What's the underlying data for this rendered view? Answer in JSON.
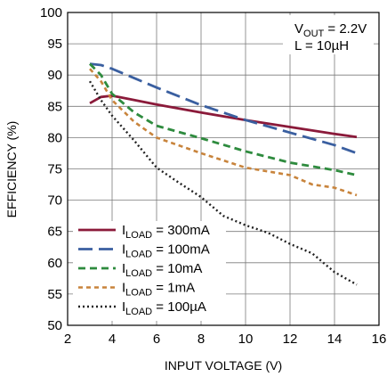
{
  "chart_data": {
    "type": "line",
    "xlabel": "INPUT VOLTAGE (V)",
    "ylabel": "EFFICIENCY (%)",
    "xlim": [
      2,
      16
    ],
    "ylim": [
      50,
      100
    ],
    "xticks": [
      2,
      4,
      6,
      8,
      10,
      12,
      14,
      16
    ],
    "yticks": [
      50,
      55,
      60,
      65,
      70,
      75,
      80,
      85,
      90,
      95,
      100
    ],
    "grid": true,
    "annotation": {
      "line1_main": "V",
      "line1_sub": "OUT",
      "line1_rest": " = 2.2V",
      "line2": "L = 10µH",
      "position": "top-right"
    },
    "legend_position": "bottom-left",
    "series": [
      {
        "name_main": "I",
        "name_sub": "LOAD",
        "name_rest": " = 300mA",
        "color": "#8b1a3a",
        "style": "solid",
        "points": [
          [
            3.0,
            85.5
          ],
          [
            3.5,
            86.5
          ],
          [
            4.0,
            86.7
          ],
          [
            5.0,
            86.0
          ],
          [
            6.0,
            85.3
          ],
          [
            8.0,
            84.0
          ],
          [
            10.0,
            82.8
          ],
          [
            12.0,
            81.7
          ],
          [
            14.0,
            80.6
          ],
          [
            15.0,
            80.1
          ]
        ]
      },
      {
        "name_main": "I",
        "name_sub": "LOAD",
        "name_rest": " = 100mA",
        "color": "#3a5fa0",
        "style": "longdash",
        "points": [
          [
            3.0,
            91.8
          ],
          [
            3.5,
            91.6
          ],
          [
            4.0,
            91.0
          ],
          [
            5.0,
            89.5
          ],
          [
            6.0,
            88.0
          ],
          [
            8.0,
            85.2
          ],
          [
            10.0,
            82.8
          ],
          [
            12.0,
            80.8
          ],
          [
            14.0,
            78.8
          ],
          [
            15.0,
            77.5
          ]
        ]
      },
      {
        "name_main": "I",
        "name_sub": "LOAD",
        "name_rest": " = 10mA",
        "color": "#2e8b3e",
        "style": "dash",
        "points": [
          [
            3.0,
            91.8
          ],
          [
            3.5,
            90.0
          ],
          [
            4.0,
            87.0
          ],
          [
            5.0,
            84.0
          ],
          [
            6.0,
            81.9
          ],
          [
            8.0,
            79.9
          ],
          [
            10.0,
            77.8
          ],
          [
            12.0,
            76.0
          ],
          [
            14.0,
            74.8
          ],
          [
            15.0,
            74.0
          ]
        ]
      },
      {
        "name_main": "I",
        "name_sub": "LOAD",
        "name_rest": " = 1mA",
        "color": "#c8843c",
        "style": "shortdash",
        "points": [
          [
            3.0,
            91.0
          ],
          [
            3.5,
            89.0
          ],
          [
            4.0,
            86.0
          ],
          [
            5.0,
            82.5
          ],
          [
            6.0,
            80.0
          ],
          [
            8.0,
            77.5
          ],
          [
            10.0,
            75.2
          ],
          [
            12.0,
            74.0
          ],
          [
            13.0,
            72.5
          ],
          [
            14.0,
            72.0
          ],
          [
            15.0,
            70.8
          ]
        ]
      },
      {
        "name_main": "I",
        "name_sub": "LOAD",
        "name_rest": " = 100µA",
        "color": "#222222",
        "style": "dot",
        "points": [
          [
            3.0,
            89.0
          ],
          [
            3.5,
            86.0
          ],
          [
            4.0,
            83.5
          ],
          [
            5.0,
            79.5
          ],
          [
            6.0,
            75.2
          ],
          [
            7.0,
            72.8
          ],
          [
            8.0,
            70.5
          ],
          [
            9.0,
            67.5
          ],
          [
            10.0,
            66.0
          ],
          [
            11.0,
            64.8
          ],
          [
            12.0,
            63.0
          ],
          [
            13.0,
            61.5
          ],
          [
            14.0,
            58.5
          ],
          [
            15.0,
            56.5
          ]
        ]
      }
    ]
  }
}
